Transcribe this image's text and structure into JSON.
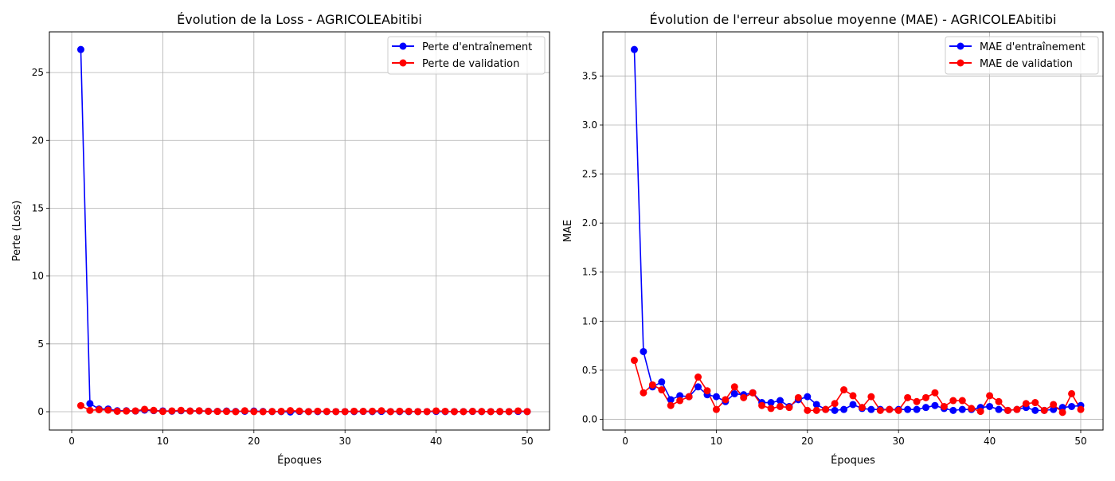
{
  "chart_data": [
    {
      "type": "line",
      "title": "Évolution de la Loss - AGRICOLEAbitibi",
      "xlabel": "Époques",
      "ylabel": "Perte (Loss)",
      "xlim": [
        -2.45,
        52.45
      ],
      "ylim": [
        -1.35,
        28.0
      ],
      "xticks": [
        0,
        10,
        20,
        30,
        40,
        50
      ],
      "yticks": [
        0,
        5,
        10,
        15,
        20,
        25
      ],
      "grid": true,
      "legend_position": "top-right",
      "x": [
        1,
        2,
        3,
        4,
        5,
        6,
        7,
        8,
        9,
        10,
        11,
        12,
        13,
        14,
        15,
        16,
        17,
        18,
        19,
        20,
        21,
        22,
        23,
        24,
        25,
        26,
        27,
        28,
        29,
        30,
        31,
        32,
        33,
        34,
        35,
        36,
        37,
        38,
        39,
        40,
        41,
        42,
        43,
        44,
        45,
        46,
        47,
        48,
        49,
        50
      ],
      "series": [
        {
          "name": "Perte d'entraînement",
          "color": "#0000ff",
          "values": [
            26.7,
            0.6,
            0.2,
            0.2,
            0.07,
            0.07,
            0.05,
            0.12,
            0.08,
            0.06,
            0.04,
            0.07,
            0.05,
            0.06,
            0.04,
            0.03,
            0.05,
            0.02,
            0.03,
            0.05,
            0.02,
            0.01,
            0.01,
            -0.02,
            0.02,
            0.01,
            0.01,
            0.01,
            0.01,
            0.01,
            0.01,
            0.02,
            0.01,
            0.02,
            0.01,
            0.01,
            0.01,
            0.01,
            0.01,
            0.02,
            0.01,
            0.01,
            0.01,
            0.02,
            0.01,
            0.01,
            0.01,
            0.01,
            0.02,
            0.01
          ]
        },
        {
          "name": "Perte de validation",
          "color": "#ff0000",
          "values": [
            0.45,
            0.1,
            0.15,
            0.12,
            0.03,
            0.05,
            0.06,
            0.18,
            0.1,
            0.02,
            0.06,
            0.1,
            0.05,
            0.07,
            0.03,
            0.02,
            0.02,
            0.0,
            0.07,
            0.01,
            0.0,
            0.02,
            0.03,
            0.08,
            0.05,
            0.01,
            0.04,
            0.02,
            0.01,
            0.01,
            0.04,
            0.03,
            0.04,
            0.07,
            0.01,
            0.04,
            0.03,
            0.01,
            0.01,
            0.06,
            0.03,
            0.01,
            0.01,
            0.03,
            0.02,
            0.01,
            0.02,
            0.01,
            0.06,
            0.01
          ]
        }
      ]
    },
    {
      "type": "line",
      "title": "Évolution de l'erreur absolue moyenne (MAE) - AGRICOLEAbitibi",
      "xlabel": "Époques",
      "ylabel": "MAE",
      "xlim": [
        -2.45,
        52.45
      ],
      "ylim": [
        -0.11,
        3.95
      ],
      "xticks": [
        0,
        10,
        20,
        30,
        40,
        50
      ],
      "yticks": [
        0.0,
        0.5,
        1.0,
        1.5,
        2.0,
        2.5,
        3.0,
        3.5
      ],
      "ytick_labels": [
        "0.0",
        "0.5",
        "1.0",
        "1.5",
        "2.0",
        "2.5",
        "3.0",
        "3.5"
      ],
      "grid": true,
      "legend_position": "top-right",
      "x": [
        1,
        2,
        3,
        4,
        5,
        6,
        7,
        8,
        9,
        10,
        11,
        12,
        13,
        14,
        15,
        16,
        17,
        18,
        19,
        20,
        21,
        22,
        23,
        24,
        25,
        26,
        27,
        28,
        29,
        30,
        31,
        32,
        33,
        34,
        35,
        36,
        37,
        38,
        39,
        40,
        41,
        42,
        43,
        44,
        45,
        46,
        47,
        48,
        49,
        50
      ],
      "series": [
        {
          "name": "MAE d'entraînement",
          "color": "#0000ff",
          "values": [
            3.77,
            0.69,
            0.33,
            0.38,
            0.2,
            0.24,
            0.23,
            0.33,
            0.25,
            0.23,
            0.18,
            0.26,
            0.25,
            0.27,
            0.17,
            0.17,
            0.19,
            0.13,
            0.2,
            0.23,
            0.15,
            0.1,
            0.09,
            0.1,
            0.15,
            0.11,
            0.1,
            0.1,
            0.1,
            0.1,
            0.1,
            0.1,
            0.12,
            0.14,
            0.11,
            0.09,
            0.1,
            0.1,
            0.12,
            0.13,
            0.1,
            0.09,
            0.1,
            0.12,
            0.09,
            0.09,
            0.1,
            0.12,
            0.13,
            0.14
          ]
        },
        {
          "name": "MAE de validation",
          "color": "#ff0000",
          "values": [
            0.6,
            0.27,
            0.35,
            0.3,
            0.14,
            0.19,
            0.23,
            0.43,
            0.29,
            0.1,
            0.2,
            0.33,
            0.22,
            0.27,
            0.14,
            0.11,
            0.13,
            0.12,
            0.22,
            0.09,
            0.09,
            0.1,
            0.16,
            0.3,
            0.24,
            0.12,
            0.23,
            0.09,
            0.1,
            0.09,
            0.22,
            0.18,
            0.22,
            0.27,
            0.13,
            0.19,
            0.19,
            0.11,
            0.08,
            0.24,
            0.18,
            0.09,
            0.1,
            0.16,
            0.17,
            0.09,
            0.15,
            0.07,
            0.26,
            0.1
          ]
        }
      ]
    }
  ]
}
